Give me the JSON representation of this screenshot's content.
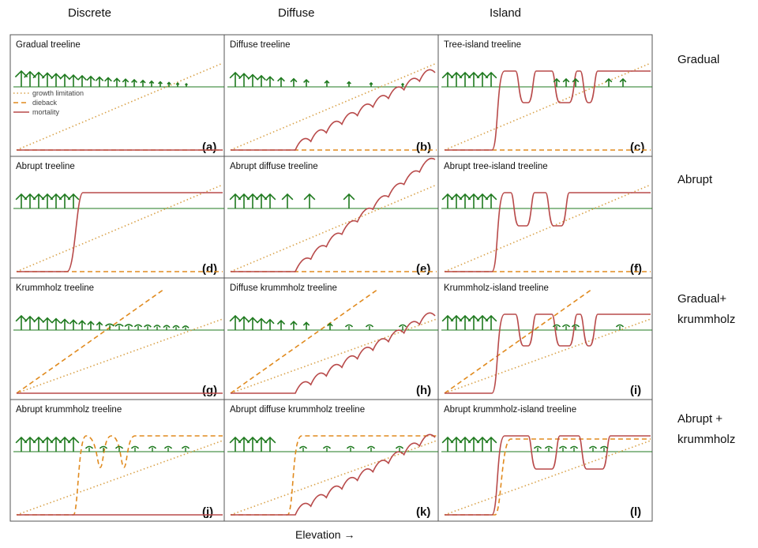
{
  "columns": [
    "Discrete",
    "Diffuse",
    "Island"
  ],
  "rows": [
    "Gradual",
    "Abrupt",
    "Gradual+ krummholz",
    "Abrupt + krummholz"
  ],
  "footer": "Elevation →",
  "legend": [
    "growth limitation",
    "dieback",
    "mortality"
  ],
  "panels": [
    {
      "title": "Gradual treeline",
      "label": "(a)"
    },
    {
      "title": "Diffuse treeline",
      "label": "(b)"
    },
    {
      "title": "Tree-island treeline",
      "label": "(c)"
    },
    {
      "title": "Abrupt treeline",
      "label": "(d)"
    },
    {
      "title": "Abrupt diffuse treeline",
      "label": "(e)"
    },
    {
      "title": "Abrupt tree-island treeline",
      "label": "(f)"
    },
    {
      "title": "Krummholz treeline",
      "label": "(g)"
    },
    {
      "title": "Diffuse krummholz treeline",
      "label": "(h)"
    },
    {
      "title": "Krummholz-island treeline",
      "label": "(i)"
    },
    {
      "title": "Abrupt krummholz treeline",
      "label": "(j)"
    },
    {
      "title": "Abrupt diffuse krummholz treeline",
      "label": "(k)"
    },
    {
      "title": "Abrupt krummholz-island treeline",
      "label": "(l)"
    }
  ],
  "colors": {
    "mortality": "#b84a4a",
    "dieback": "#e08a1e",
    "growth": "#d9a24a",
    "tree": "#1f7a1f",
    "frame": "#555555"
  }
}
